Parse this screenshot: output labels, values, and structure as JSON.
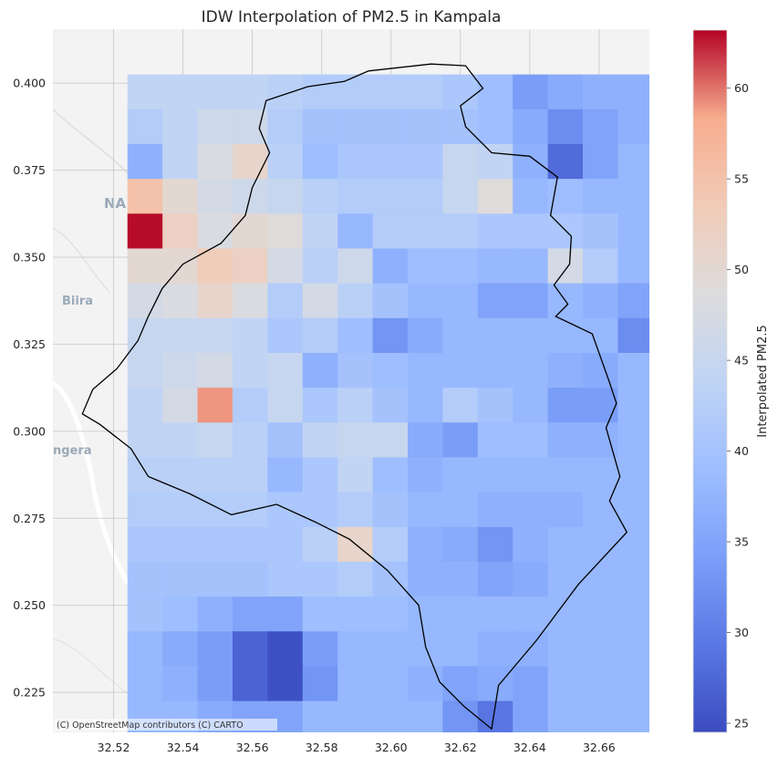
{
  "chart_data": {
    "type": "heatmap",
    "title": "IDW Interpolation of PM2.5 in Kampala",
    "xlabel": "",
    "ylabel": "",
    "colorbar_label": "Interpolated PM2.5",
    "colormap": "coolwarm",
    "vmin": 24.5,
    "vmax": 63.2,
    "xlim": [
      32.5025,
      32.6745
    ],
    "ylim": [
      0.2135,
      0.4155
    ],
    "x_ticks": [
      32.52,
      32.54,
      32.56,
      32.58,
      32.6,
      32.62,
      32.64,
      32.66
    ],
    "x_tick_labels": [
      "32.52",
      "32.54",
      "32.56",
      "32.58",
      "32.60",
      "32.62",
      "32.64",
      "32.66"
    ],
    "y_ticks": [
      0.225,
      0.25,
      0.275,
      0.3,
      0.325,
      0.35,
      0.375,
      0.4
    ],
    "y_tick_labels": [
      "0.225",
      "0.250",
      "0.275",
      "0.300",
      "0.325",
      "0.350",
      "0.375",
      "0.400"
    ],
    "colorbar_ticks": [
      25,
      30,
      35,
      40,
      45,
      50,
      55,
      60
    ],
    "grid": true,
    "grid_x": {
      "x0": 32.524,
      "dx": 0.0101,
      "n": 15
    },
    "grid_y": {
      "y0": 0.4025,
      "dy": 0.01,
      "n": 19
    },
    "values": [
      [
        44,
        44,
        44,
        44,
        43,
        42,
        42,
        42,
        42,
        41,
        39,
        34,
        36,
        37,
        37
      ],
      [
        42,
        44,
        46,
        46,
        42,
        40,
        40,
        40,
        40,
        40,
        39,
        36,
        32,
        35,
        37
      ],
      [
        37,
        44,
        48,
        51,
        43,
        39,
        41,
        41,
        41,
        45,
        44,
        37,
        28,
        35,
        38
      ],
      [
        55,
        50,
        47,
        46,
        45,
        43,
        42,
        42,
        42,
        45,
        49,
        38,
        39,
        38,
        38
      ],
      [
        63,
        52,
        48,
        50,
        49,
        44,
        38,
        42,
        42,
        42,
        41,
        41,
        41,
        40,
        38
      ],
      [
        50,
        50,
        53,
        52,
        47,
        43,
        46,
        37,
        39,
        39,
        38,
        38,
        47,
        42,
        38
      ],
      [
        47,
        48,
        51,
        48,
        42,
        47,
        43,
        40,
        38,
        38,
        35,
        35,
        38,
        37,
        35
      ],
      [
        45,
        45,
        45,
        44,
        41,
        42,
        39,
        33,
        36,
        38,
        38,
        38,
        38,
        38,
        32
      ],
      [
        45,
        46,
        47,
        44,
        45,
        37,
        40,
        39,
        38,
        38,
        38,
        38,
        37,
        36,
        38
      ],
      [
        44,
        47,
        59,
        42,
        45,
        41,
        43,
        40,
        38,
        42,
        40,
        38,
        34,
        34,
        38
      ],
      [
        44,
        44,
        45,
        43,
        40,
        44,
        45,
        45,
        36,
        34,
        39,
        39,
        37,
        37,
        38
      ],
      [
        43,
        43,
        43,
        43,
        38,
        41,
        44,
        39,
        37,
        38,
        38,
        38,
        38,
        38,
        38
      ],
      [
        42,
        42,
        42,
        42,
        41,
        41,
        42,
        40,
        38,
        38,
        37,
        37,
        37,
        38,
        38
      ],
      [
        41,
        41,
        41,
        41,
        41,
        43,
        51,
        42,
        37,
        36,
        33,
        37,
        38,
        38,
        38
      ],
      [
        40,
        40,
        40,
        40,
        41,
        41,
        42,
        40,
        37,
        37,
        35,
        36,
        38,
        38,
        38
      ],
      [
        40,
        39,
        37,
        35,
        35,
        39,
        39,
        39,
        38,
        38,
        38,
        38,
        38,
        38,
        38
      ],
      [
        38,
        36,
        34,
        27,
        25,
        34,
        38,
        38,
        38,
        38,
        37,
        37,
        38,
        38,
        38
      ],
      [
        38,
        37,
        34,
        27,
        25,
        33,
        38,
        38,
        37,
        35,
        36,
        35,
        38,
        38,
        38
      ],
      [
        38,
        38,
        36,
        35,
        35,
        38,
        38,
        38,
        38,
        33,
        29,
        35,
        38,
        38,
        38
      ]
    ],
    "boundary": [
      [
        32.5865,
        0.4005
      ],
      [
        32.5935,
        0.4035
      ],
      [
        32.6115,
        0.4055
      ],
      [
        32.6215,
        0.405
      ],
      [
        32.6265,
        0.3985
      ],
      [
        32.62,
        0.3935
      ],
      [
        32.6215,
        0.3875
      ],
      [
        32.629,
        0.38
      ],
      [
        32.64,
        0.379
      ],
      [
        32.648,
        0.373
      ],
      [
        32.646,
        0.362
      ],
      [
        32.652,
        0.356
      ],
      [
        32.6515,
        0.348
      ],
      [
        32.647,
        0.342
      ],
      [
        32.651,
        0.3365
      ],
      [
        32.6475,
        0.333
      ],
      [
        32.658,
        0.328
      ],
      [
        32.6605,
        0.321
      ],
      [
        32.663,
        0.314
      ],
      [
        32.665,
        0.308
      ],
      [
        32.662,
        0.301
      ],
      [
        32.664,
        0.294
      ],
      [
        32.666,
        0.287
      ],
      [
        32.663,
        0.28
      ],
      [
        32.668,
        0.271
      ],
      [
        32.654,
        0.256
      ],
      [
        32.642,
        0.24
      ],
      [
        32.631,
        0.227
      ],
      [
        32.629,
        0.2145
      ],
      [
        32.621,
        0.221
      ],
      [
        32.614,
        0.228
      ],
      [
        32.61,
        0.238
      ],
      [
        32.608,
        0.25
      ],
      [
        32.599,
        0.26
      ],
      [
        32.588,
        0.269
      ],
      [
        32.578,
        0.274
      ],
      [
        32.567,
        0.279
      ],
      [
        32.554,
        0.276
      ],
      [
        32.542,
        0.282
      ],
      [
        32.53,
        0.287
      ],
      [
        32.525,
        0.295
      ],
      [
        32.516,
        0.302
      ],
      [
        32.511,
        0.305
      ],
      [
        32.514,
        0.312
      ],
      [
        32.521,
        0.318
      ],
      [
        32.527,
        0.326
      ],
      [
        32.53,
        0.333
      ],
      [
        32.534,
        0.341
      ],
      [
        32.54,
        0.348
      ],
      [
        32.551,
        0.354
      ],
      [
        32.558,
        0.362
      ],
      [
        32.56,
        0.37
      ],
      [
        32.565,
        0.38
      ],
      [
        32.562,
        0.387
      ],
      [
        32.564,
        0.395
      ],
      [
        32.576,
        0.399
      ],
      [
        32.5865,
        0.4005
      ]
    ]
  },
  "basemap": {
    "attribution": "(C) OpenStreetMap contributors (C) CARTO",
    "place_labels": [
      "NA",
      "Biira",
      "ngera"
    ],
    "label_color": "#9aa9b8",
    "background": "#f3f3f3"
  },
  "colors": {
    "boundary": "#000000",
    "cell_outline": "none",
    "grid": "#cfcfcf"
  }
}
